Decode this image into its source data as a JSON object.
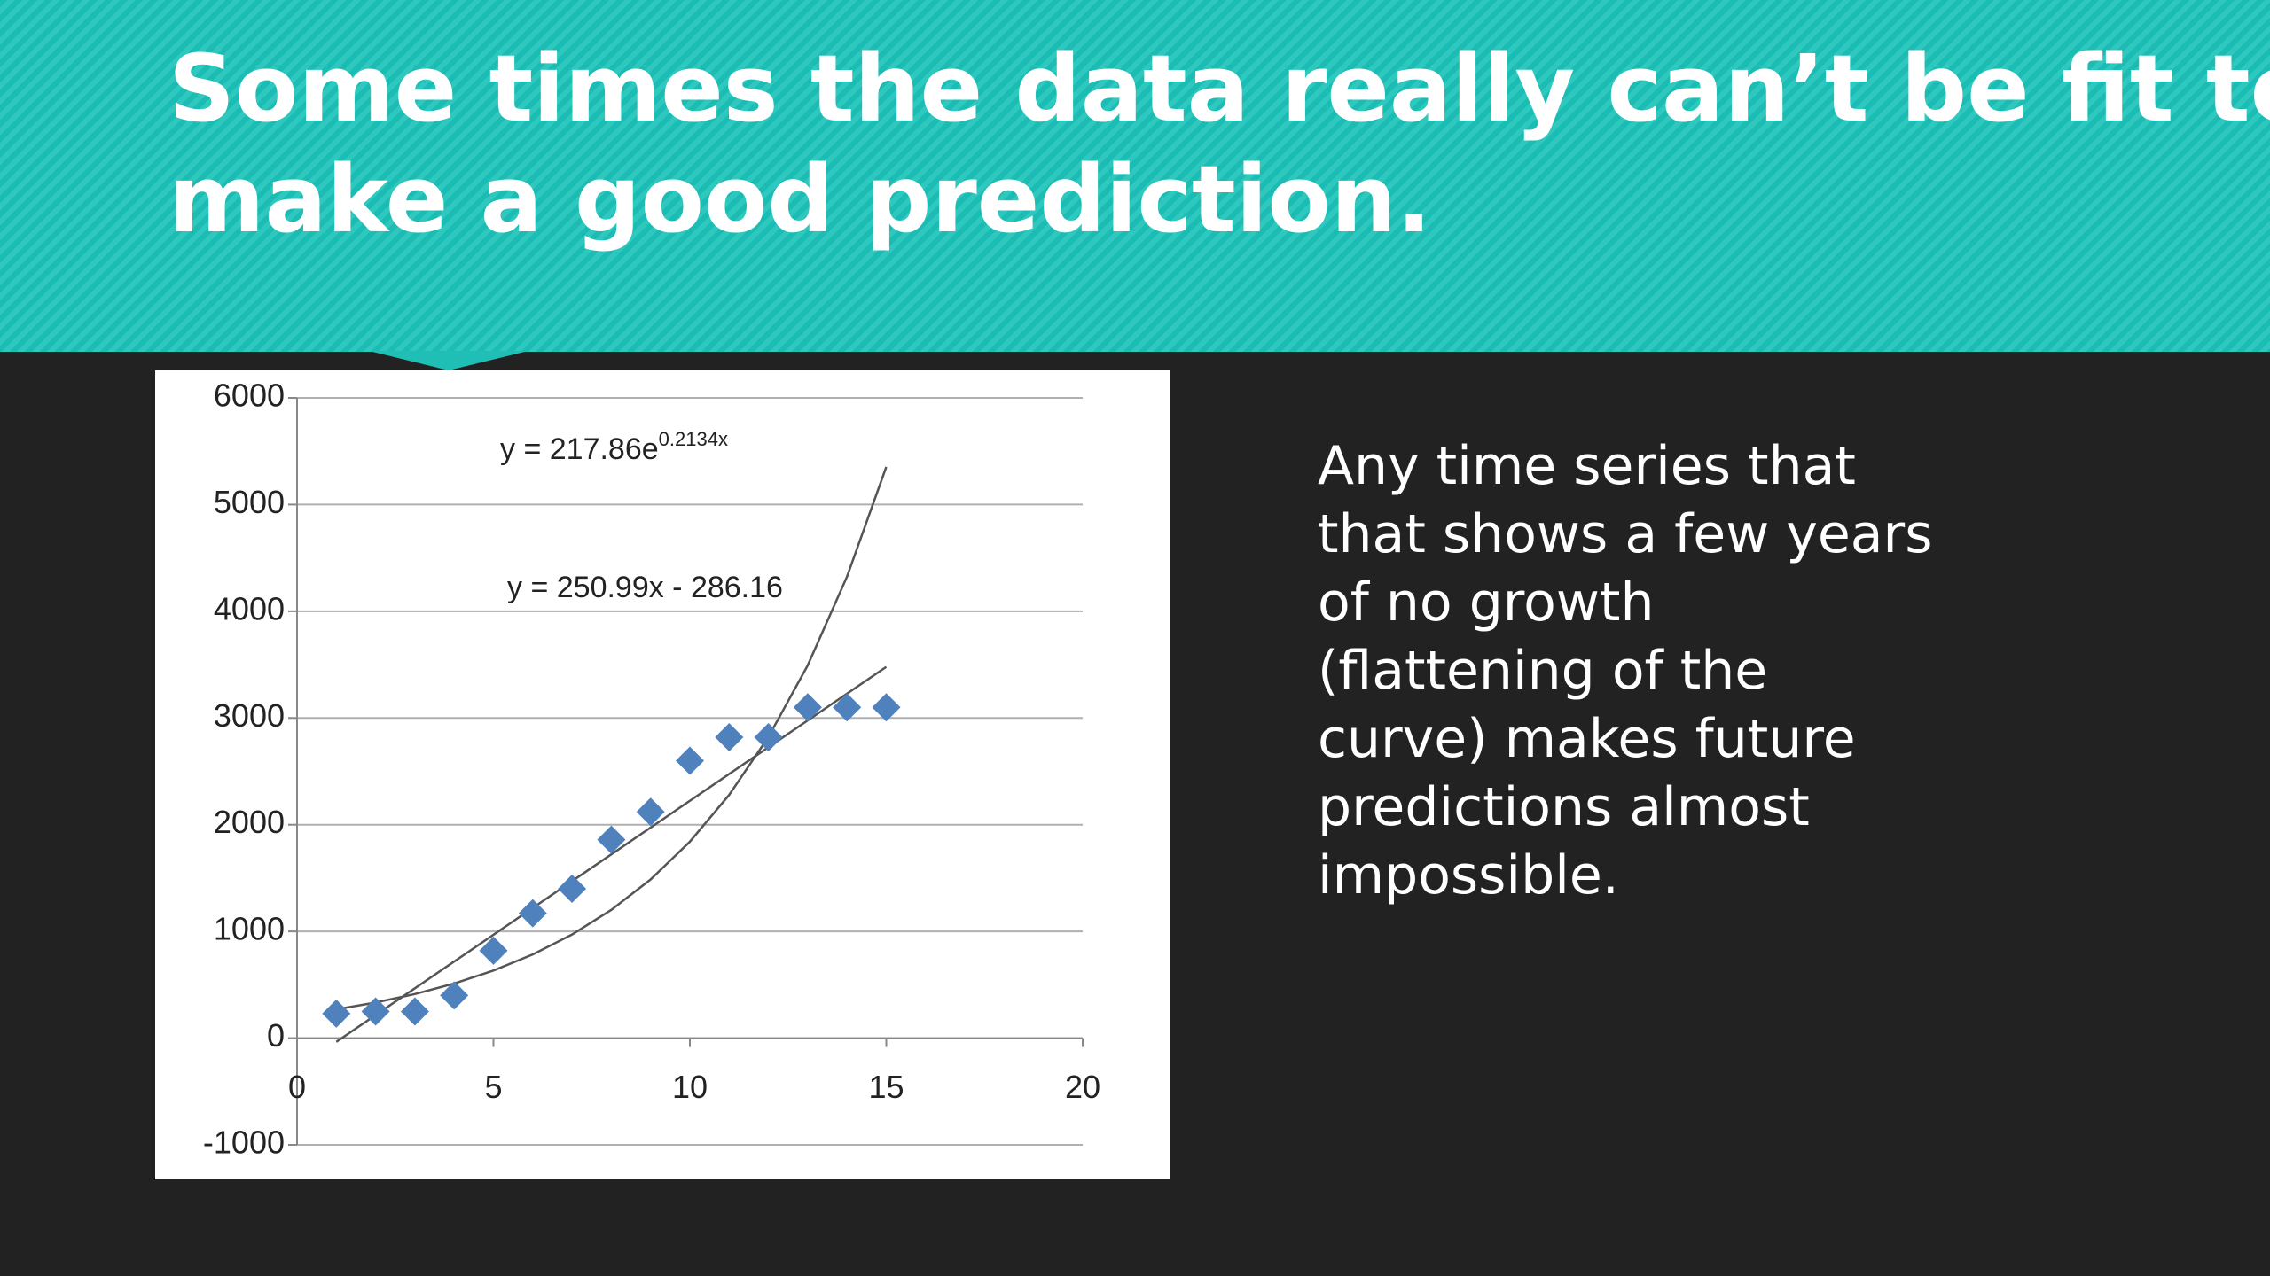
{
  "slide": {
    "title": [
      "Some times the data really can’t be fit to",
      "make a good prediction."
    ],
    "body": [
      "Any time series that",
      "that shows a few years",
      "of no growth",
      "(flattening of the",
      "curve) makes future",
      "predictions almost",
      "impossible."
    ]
  },
  "chart_data": {
    "type": "scatter",
    "x": [
      1,
      2,
      3,
      4,
      5,
      6,
      7,
      8,
      9,
      10,
      11,
      12,
      13,
      14,
      15
    ],
    "series": [
      {
        "color": "#4f81bd",
        "values": [
          230,
          250,
          250,
          400,
          820,
          1170,
          1400,
          1860,
          2120,
          2600,
          2820,
          2820,
          3100,
          3100,
          3100
        ]
      }
    ],
    "trendlines": [
      {
        "label": "y = 217.86e",
        "label_sup": "0.2134x",
        "color": "#555555",
        "x": [
          1,
          2,
          3,
          4,
          5,
          6,
          7,
          8,
          9,
          10,
          11,
          12,
          13,
          14,
          15
        ],
        "values": [
          270,
          334,
          413,
          512,
          633,
          784,
          971,
          1202,
          1487,
          1841,
          2279,
          2822,
          3493,
          4324,
          5353
        ]
      },
      {
        "label": "y = 250.99x - 286.16",
        "color": "#555555",
        "x": [
          1,
          15
        ],
        "values": [
          -35,
          3479
        ]
      }
    ],
    "xlim": [
      0,
      20
    ],
    "xticks": [
      0,
      5,
      10,
      15,
      20
    ],
    "ylim": [
      -1000,
      6000
    ],
    "yticks": [
      -1000,
      0,
      1000,
      2000,
      3000,
      4000,
      5000,
      6000
    ],
    "grid": true
  }
}
